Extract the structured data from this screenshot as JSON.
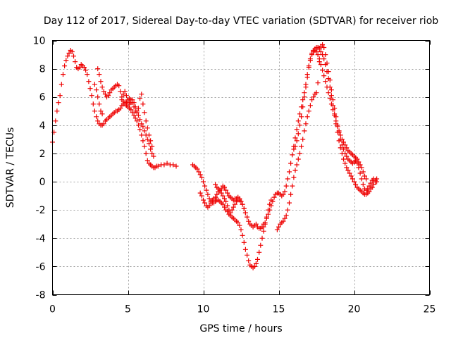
{
  "chart_data": {
    "type": "scatter",
    "title": "Day 112 of 2017, Sidereal Day-to-day VTEC variation (SDTVAR) for receiver riob",
    "xlabel": "GPS time / hours",
    "ylabel": "SDTVAR / TECUs",
    "xlim": [
      0,
      25
    ],
    "ylim": [
      -8,
      10
    ],
    "xticks": [
      0,
      5,
      10,
      15,
      20,
      25
    ],
    "yticks": [
      -8,
      -6,
      -4,
      -2,
      0,
      2,
      4,
      6,
      8,
      10
    ],
    "grid": true,
    "marker": "+",
    "color": "#ee0000",
    "series": [
      {
        "x": [
          0.0,
          0.1,
          0.2,
          0.3,
          0.4,
          0.5,
          0.6,
          0.7,
          0.8,
          0.9,
          1.0,
          1.1,
          1.2,
          1.3,
          1.4,
          1.5,
          1.6,
          1.7,
          1.8,
          1.9,
          2.0,
          2.1,
          2.2,
          2.3,
          2.4,
          2.5,
          2.6,
          2.7,
          2.8,
          2.9,
          3.0,
          3.1,
          3.2,
          3.3,
          3.4,
          3.5,
          3.6,
          3.7,
          3.8,
          3.9,
          4.0,
          4.1,
          4.2,
          4.3,
          4.4,
          4.5,
          4.6,
          4.7,
          4.8,
          4.9,
          5.0,
          5.1,
          5.2,
          5.3,
          5.4,
          5.5,
          5.6,
          5.7,
          5.8,
          5.9,
          6.0,
          6.1,
          6.2,
          6.3,
          6.4,
          6.5,
          6.6,
          6.7,
          6.8,
          6.9,
          7.0,
          7.2,
          7.4,
          7.6,
          7.8,
          8.0,
          8.2
        ],
        "y": [
          2.8,
          3.5,
          4.3,
          5.0,
          5.6,
          6.1,
          6.9,
          7.6,
          8.2,
          8.6,
          8.9,
          9.1,
          9.3,
          9.2,
          8.9,
          8.5,
          8.1,
          8.0,
          8.1,
          8.3,
          8.2,
          8.1,
          7.9,
          7.6,
          7.1,
          6.6,
          6.1,
          5.5,
          5.0,
          4.6,
          4.3,
          4.1,
          4.0,
          4.0,
          4.1,
          4.3,
          4.4,
          4.5,
          4.6,
          4.7,
          4.8,
          4.9,
          5.0,
          5.0,
          5.1,
          5.2,
          5.4,
          5.5,
          5.5,
          5.4,
          5.3,
          5.2,
          5.1,
          4.9,
          4.7,
          4.5,
          4.3,
          4.0,
          3.7,
          3.3,
          2.9,
          2.5,
          2.0,
          1.5,
          1.3,
          1.2,
          1.1,
          1.0,
          1.0,
          1.1,
          1.1,
          1.2,
          1.2,
          1.3,
          1.2,
          1.2,
          1.1
        ]
      },
      {
        "x": [
          3.0,
          3.1,
          3.2,
          3.3,
          3.4,
          3.5,
          3.6,
          3.7,
          3.8,
          3.9,
          4.0,
          4.1,
          4.2,
          4.3,
          4.4,
          4.5,
          4.6,
          4.7,
          4.8,
          4.9,
          5.0,
          5.1,
          5.2,
          5.3,
          5.4,
          5.5,
          5.6,
          5.7,
          5.8,
          5.9,
          6.0,
          6.1,
          6.2,
          6.3,
          6.4,
          6.5,
          6.6
        ],
        "y": [
          8.0,
          7.6,
          7.1,
          6.7,
          6.4,
          6.2,
          6.0,
          6.1,
          6.3,
          6.5,
          6.6,
          6.7,
          6.8,
          6.9,
          6.8,
          6.4,
          6.0,
          5.7,
          5.6,
          5.6,
          5.7,
          5.9,
          5.8,
          5.6,
          5.3,
          5.0,
          4.9,
          5.2,
          5.9,
          6.2,
          5.5,
          4.9,
          4.3,
          3.8,
          3.3,
          2.9,
          2.5
        ]
      },
      {
        "x": [
          2.8,
          2.9,
          3.0,
          3.1,
          3.2,
          3.3,
          4.6,
          4.7,
          4.8,
          4.9,
          5.0,
          5.1,
          5.2,
          5.3,
          5.4,
          5.5,
          5.6,
          5.7,
          5.8,
          5.9,
          6.0,
          6.1,
          6.2,
          6.3,
          6.4,
          6.5,
          6.6,
          6.7
        ],
        "y": [
          6.9,
          6.5,
          6.0,
          5.5,
          5.0,
          4.8,
          5.8,
          6.2,
          6.4,
          6.1,
          5.8,
          5.5,
          5.6,
          5.8,
          5.6,
          5.3,
          5.0,
          4.7,
          4.4,
          4.1,
          3.9,
          3.6,
          3.3,
          3.0,
          2.7,
          2.3,
          2.0,
          1.8
        ]
      },
      {
        "x": [
          9.3,
          9.4,
          9.5,
          9.6,
          9.7,
          9.8,
          9.9,
          10.0,
          10.1,
          10.2,
          10.3,
          10.4,
          10.5,
          10.6,
          10.7,
          10.8,
          10.9,
          11.0,
          11.1,
          11.2,
          11.3,
          11.4,
          11.5,
          11.6,
          11.7,
          11.8,
          11.9,
          12.0,
          12.1,
          12.2,
          12.3,
          12.4,
          12.5,
          12.6,
          12.7,
          12.8,
          12.9,
          13.0,
          13.1,
          13.2,
          13.3,
          13.4,
          13.5,
          13.6,
          13.7,
          13.8,
          13.9,
          14.0,
          14.1,
          14.2,
          14.3,
          14.4,
          14.5
        ],
        "y": [
          1.2,
          1.1,
          1.0,
          0.9,
          0.7,
          0.5,
          0.3,
          0.0,
          -0.3,
          -0.6,
          -0.9,
          -1.2,
          -1.4,
          -1.5,
          -1.5,
          -1.4,
          -1.3,
          -1.3,
          -1.4,
          -1.5,
          -1.6,
          -1.8,
          -2.0,
          -2.1,
          -2.3,
          -2.4,
          -2.5,
          -2.6,
          -2.7,
          -2.8,
          -2.9,
          -3.1,
          -3.4,
          -3.8,
          -4.3,
          -4.8,
          -5.2,
          -5.6,
          -5.9,
          -6.0,
          -6.1,
          -6.0,
          -5.8,
          -5.5,
          -5.0,
          -4.5,
          -4.0,
          -3.5,
          -3.0,
          -2.5,
          -2.0,
          -1.6,
          -1.3
        ]
      },
      {
        "x": [
          9.8,
          9.9,
          10.0,
          10.1,
          10.2,
          10.3,
          10.4,
          10.5,
          10.6,
          10.7,
          10.8,
          10.9,
          11.0,
          11.1,
          11.2,
          11.3,
          11.4,
          11.5,
          11.6,
          11.7,
          11.8,
          11.9,
          12.0,
          12.1,
          12.2,
          12.3,
          12.4,
          12.5,
          12.6,
          12.7,
          12.8,
          12.9,
          13.0,
          13.1,
          13.2,
          13.3,
          13.4,
          13.5,
          13.6,
          13.7,
          13.8,
          13.9,
          14.0
        ],
        "y": [
          -0.8,
          -1.0,
          -1.3,
          -1.5,
          -1.7,
          -1.8,
          -1.7,
          -1.5,
          -1.3,
          -1.2,
          -1.1,
          -0.9,
          -0.7,
          -0.6,
          -0.8,
          -1.0,
          -1.2,
          -1.4,
          -1.7,
          -2.0,
          -2.2,
          -2.0,
          -1.8,
          -1.6,
          -1.4,
          -1.3,
          -1.3,
          -1.4,
          -1.6,
          -1.9,
          -2.2,
          -2.5,
          -2.8,
          -3.0,
          -3.1,
          -3.2,
          -3.1,
          -3.0,
          -3.2,
          -3.3,
          -3.3,
          -3.2,
          -3.0
        ]
      },
      {
        "x": [
          10.8,
          10.9,
          11.0,
          11.1,
          11.2,
          11.3,
          11.4,
          11.5,
          11.6,
          11.7,
          11.8,
          11.9,
          12.0,
          12.1,
          12.2,
          12.3,
          12.4,
          12.5,
          12.6,
          12.7,
          12.8,
          12.9
        ],
        "y": [
          -0.2,
          -0.4,
          -0.5,
          -0.6,
          -0.5,
          -0.3,
          -0.4,
          -0.6,
          -0.8,
          -1.0,
          -1.1,
          -1.2,
          -1.3,
          -1.2,
          -1.2,
          -1.1,
          -1.2,
          -1.4,
          -1.6,
          -1.9,
          -2.2,
          -2.5
        ]
      },
      {
        "x": [
          14.0,
          14.1,
          14.2,
          14.3,
          14.4,
          14.5,
          14.6,
          14.7,
          14.8,
          14.9,
          15.0,
          15.1,
          15.2,
          15.3,
          15.4,
          15.5,
          15.6,
          15.7,
          15.8,
          15.9,
          16.0,
          16.1,
          16.2,
          16.3,
          16.4,
          16.5,
          16.6,
          16.7,
          16.8,
          16.9,
          17.0,
          17.1,
          17.2,
          17.3,
          17.4,
          17.5,
          17.6,
          17.7,
          17.8,
          17.9,
          18.0,
          18.1,
          18.2,
          18.3,
          18.4,
          18.5,
          18.6,
          18.7,
          18.8,
          18.9,
          19.0,
          19.1,
          19.2,
          19.3,
          19.4,
          19.5,
          19.6,
          19.7,
          19.8,
          19.9,
          20.0,
          20.1,
          20.2,
          20.3,
          20.4,
          20.5,
          20.6,
          20.7,
          20.8,
          20.9,
          21.0,
          21.1,
          21.2,
          21.3,
          21.4,
          21.5
        ],
        "y": [
          -3.2,
          -2.9,
          -2.6,
          -2.3,
          -2.0,
          -1.7,
          -1.4,
          -1.1,
          -0.9,
          -0.8,
          -0.8,
          -0.9,
          -1.0,
          -0.9,
          -0.7,
          -0.3,
          0.2,
          0.7,
          1.3,
          1.9,
          2.5,
          3.1,
          3.7,
          4.3,
          4.8,
          5.3,
          5.8,
          6.3,
          6.9,
          7.6,
          8.2,
          8.7,
          9.1,
          9.3,
          9.4,
          9.5,
          9.5,
          9.4,
          9.2,
          9.0,
          8.7,
          8.3,
          7.8,
          7.3,
          6.7,
          6.1,
          5.4,
          4.8,
          4.1,
          3.5,
          2.9,
          2.4,
          2.0,
          1.6,
          1.3,
          1.0,
          0.8,
          0.6,
          0.4,
          0.2,
          0.0,
          -0.2,
          -0.4,
          -0.5,
          -0.6,
          -0.7,
          -0.8,
          -0.9,
          -0.9,
          -0.8,
          -0.7,
          -0.5,
          -0.4,
          -0.2,
          0.0,
          0.2
        ]
      },
      {
        "x": [
          14.9,
          15.0,
          15.1,
          15.2,
          15.3,
          15.4,
          15.5,
          15.6,
          15.7,
          15.8,
          15.9,
          16.0,
          16.1,
          16.2,
          16.3,
          16.4,
          16.5,
          16.6,
          16.7,
          16.8,
          16.9,
          17.0,
          17.1,
          17.2,
          17.3,
          17.4,
          17.5,
          17.6,
          17.7,
          17.8,
          17.9,
          18.0,
          18.1,
          18.2,
          18.3,
          18.4,
          18.5,
          18.6,
          18.7,
          18.8,
          18.9,
          19.0,
          19.1,
          19.2,
          19.3,
          19.4,
          19.5,
          19.6,
          19.7,
          19.8,
          19.9,
          20.0,
          20.1,
          20.2,
          20.3,
          20.4,
          20.5,
          20.6,
          20.7,
          20.8,
          20.9,
          21.0,
          21.1,
          21.2,
          21.3,
          21.4,
          21.5
        ],
        "y": [
          -3.4,
          -3.2,
          -3.0,
          -2.9,
          -2.8,
          -2.6,
          -2.4,
          -2.0,
          -1.5,
          -0.9,
          -0.3,
          0.3,
          0.8,
          1.2,
          1.6,
          2.0,
          2.5,
          3.0,
          3.6,
          4.1,
          4.6,
          5.0,
          5.4,
          5.8,
          6.0,
          6.2,
          6.3,
          7.0,
          8.5,
          9.6,
          9.7,
          9.5,
          9.0,
          8.4,
          7.8,
          7.2,
          6.5,
          5.8,
          5.2,
          4.6,
          4.0,
          3.5,
          3.0,
          2.6,
          2.3,
          2.0,
          1.8,
          1.6,
          1.5,
          1.4,
          1.3,
          1.4,
          1.5,
          1.3,
          1.0,
          0.6,
          0.2,
          -0.2,
          -0.5,
          -0.6,
          -0.5,
          -0.3,
          -0.1,
          0.1,
          0.2,
          0.1,
          0.0
        ]
      },
      {
        "x": [
          16.0,
          16.1,
          16.2,
          16.3,
          16.4,
          16.5,
          16.6,
          16.7,
          16.8,
          16.9,
          17.0,
          17.1,
          17.2,
          17.3,
          17.4,
          17.5,
          17.6,
          17.7,
          17.8,
          17.9,
          18.0,
          18.1,
          18.2,
          18.3,
          18.4,
          18.5,
          18.6,
          18.7,
          18.8,
          18.9,
          19.0,
          19.1,
          19.2,
          19.3,
          19.4,
          19.5,
          19.6,
          19.7,
          19.8,
          19.9,
          20.0,
          20.1,
          20.2,
          20.3,
          20.4,
          20.5,
          20.6,
          20.7,
          20.8
        ],
        "y": [
          2.3,
          2.5,
          2.9,
          3.4,
          4.0,
          4.6,
          5.3,
          6.0,
          6.7,
          7.4,
          8.1,
          8.6,
          9.0,
          9.2,
          9.3,
          9.2,
          9.0,
          8.7,
          8.3,
          7.9,
          7.5,
          7.1,
          6.7,
          6.3,
          5.9,
          5.5,
          5.1,
          4.7,
          4.3,
          3.9,
          3.6,
          3.3,
          3.0,
          2.8,
          2.6,
          2.4,
          2.2,
          2.1,
          2.0,
          1.9,
          1.8,
          1.7,
          1.6,
          1.4,
          1.2,
          1.0,
          0.7,
          0.4,
          0.2
        ]
      }
    ]
  }
}
